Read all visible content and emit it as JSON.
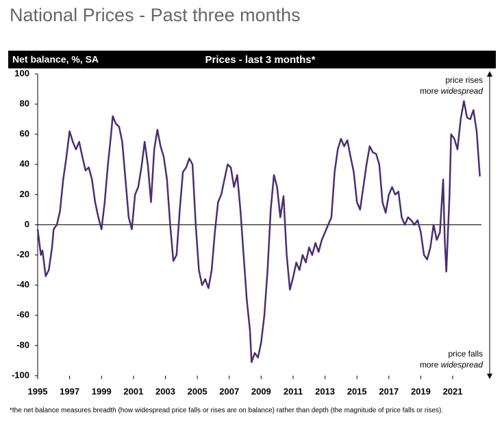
{
  "chart_data": {
    "type": "line",
    "title": "National Prices - Past three months",
    "header_left": "Net balance, %, SA",
    "subtitle": "Prices - last 3 months*",
    "annotation_top": {
      "line1": "price rises",
      "line2": "more",
      "emphasis": "widespread"
    },
    "annotation_bottom": {
      "line1": "price falls",
      "line2": "more",
      "emphasis": "widespread"
    },
    "footnote": "*the net balance measures breadth (how widespread price falls or rises are on balance)  rather than depth (the magnitude of price falls or rises).",
    "xlim": [
      1995,
      2022.8
    ],
    "xticks": [
      1995,
      1997,
      1999,
      2001,
      2003,
      2005,
      2007,
      2009,
      2011,
      2013,
      2015,
      2017,
      2019,
      2021
    ],
    "ylim": [
      -100,
      100
    ],
    "yticks": [
      -100,
      -80,
      -60,
      -40,
      -20,
      0,
      20,
      40,
      60,
      80,
      100
    ],
    "series": [
      {
        "color": "#4b2d73",
        "x": [
          1995.0,
          1995.2,
          1995.3,
          1995.5,
          1995.7,
          1995.9,
          1996.0,
          1996.2,
          1996.4,
          1996.6,
          1996.8,
          1997.0,
          1997.2,
          1997.4,
          1997.6,
          1997.8,
          1998.0,
          1998.2,
          1998.4,
          1998.6,
          1998.8,
          1999.0,
          1999.2,
          1999.4,
          1999.6,
          1999.7,
          1999.9,
          2000.1,
          2000.3,
          2000.5,
          2000.7,
          2000.9,
          2001.1,
          2001.3,
          2001.5,
          2001.7,
          2001.9,
          2002.1,
          2002.3,
          2002.5,
          2002.7,
          2002.9,
          2003.1,
          2003.3,
          2003.5,
          2003.7,
          2003.9,
          2004.1,
          2004.3,
          2004.5,
          2004.7,
          2004.9,
          2005.1,
          2005.3,
          2005.5,
          2005.7,
          2005.9,
          2006.1,
          2006.3,
          2006.5,
          2006.7,
          2006.9,
          2007.1,
          2007.3,
          2007.5,
          2007.7,
          2007.9,
          2008.1,
          2008.3,
          2008.4,
          2008.6,
          2008.8,
          2009.0,
          2009.2,
          2009.4,
          2009.6,
          2009.8,
          2010.0,
          2010.2,
          2010.4,
          2010.6,
          2010.8,
          2011.0,
          2011.2,
          2011.4,
          2011.6,
          2011.8,
          2012.0,
          2012.2,
          2012.4,
          2012.6,
          2012.8,
          2013.0,
          2013.2,
          2013.4,
          2013.6,
          2013.8,
          2014.0,
          2014.2,
          2014.4,
          2014.6,
          2014.8,
          2015.0,
          2015.2,
          2015.4,
          2015.6,
          2015.8,
          2016.0,
          2016.2,
          2016.4,
          2016.6,
          2016.8,
          2017.0,
          2017.2,
          2017.4,
          2017.6,
          2017.8,
          2018.0,
          2018.2,
          2018.4,
          2018.6,
          2018.8,
          2019.0,
          2019.2,
          2019.4,
          2019.6,
          2019.8,
          2020.0,
          2020.2,
          2020.4,
          2020.5,
          2020.6,
          2020.8,
          2020.9,
          2021.1,
          2021.3,
          2021.5,
          2021.7,
          2021.9,
          2022.1,
          2022.3,
          2022.5,
          2022.7
        ],
        "values": [
          -3,
          -20,
          -17,
          -34,
          -30,
          -15,
          -3,
          0,
          9,
          30,
          45,
          62,
          55,
          50,
          55,
          45,
          36,
          38,
          30,
          15,
          5,
          -3,
          15,
          40,
          60,
          72,
          67,
          65,
          55,
          30,
          5,
          -3,
          20,
          25,
          38,
          55,
          40,
          15,
          50,
          63,
          52,
          45,
          30,
          0,
          -24,
          -20,
          10,
          35,
          38,
          44,
          40,
          0,
          -30,
          -40,
          -36,
          -42,
          -30,
          -5,
          15,
          20,
          30,
          40,
          38,
          25,
          33,
          10,
          -20,
          -50,
          -70,
          -91,
          -85,
          -88,
          -78,
          -60,
          -30,
          10,
          33,
          25,
          5,
          19,
          -20,
          -43,
          -35,
          -25,
          -30,
          -20,
          -25,
          -15,
          -20,
          -12,
          -18,
          -10,
          -5,
          0,
          5,
          35,
          50,
          57,
          52,
          56,
          45,
          35,
          15,
          10,
          25,
          40,
          52,
          48,
          47,
          40,
          15,
          8,
          20,
          25,
          20,
          22,
          5,
          0,
          5,
          3,
          0,
          3,
          -5,
          -20,
          -23,
          -15,
          0,
          -10,
          -5,
          30,
          -10,
          -31,
          20,
          60,
          57,
          50,
          70,
          82,
          71,
          70,
          76,
          62,
          32
        ]
      }
    ]
  }
}
